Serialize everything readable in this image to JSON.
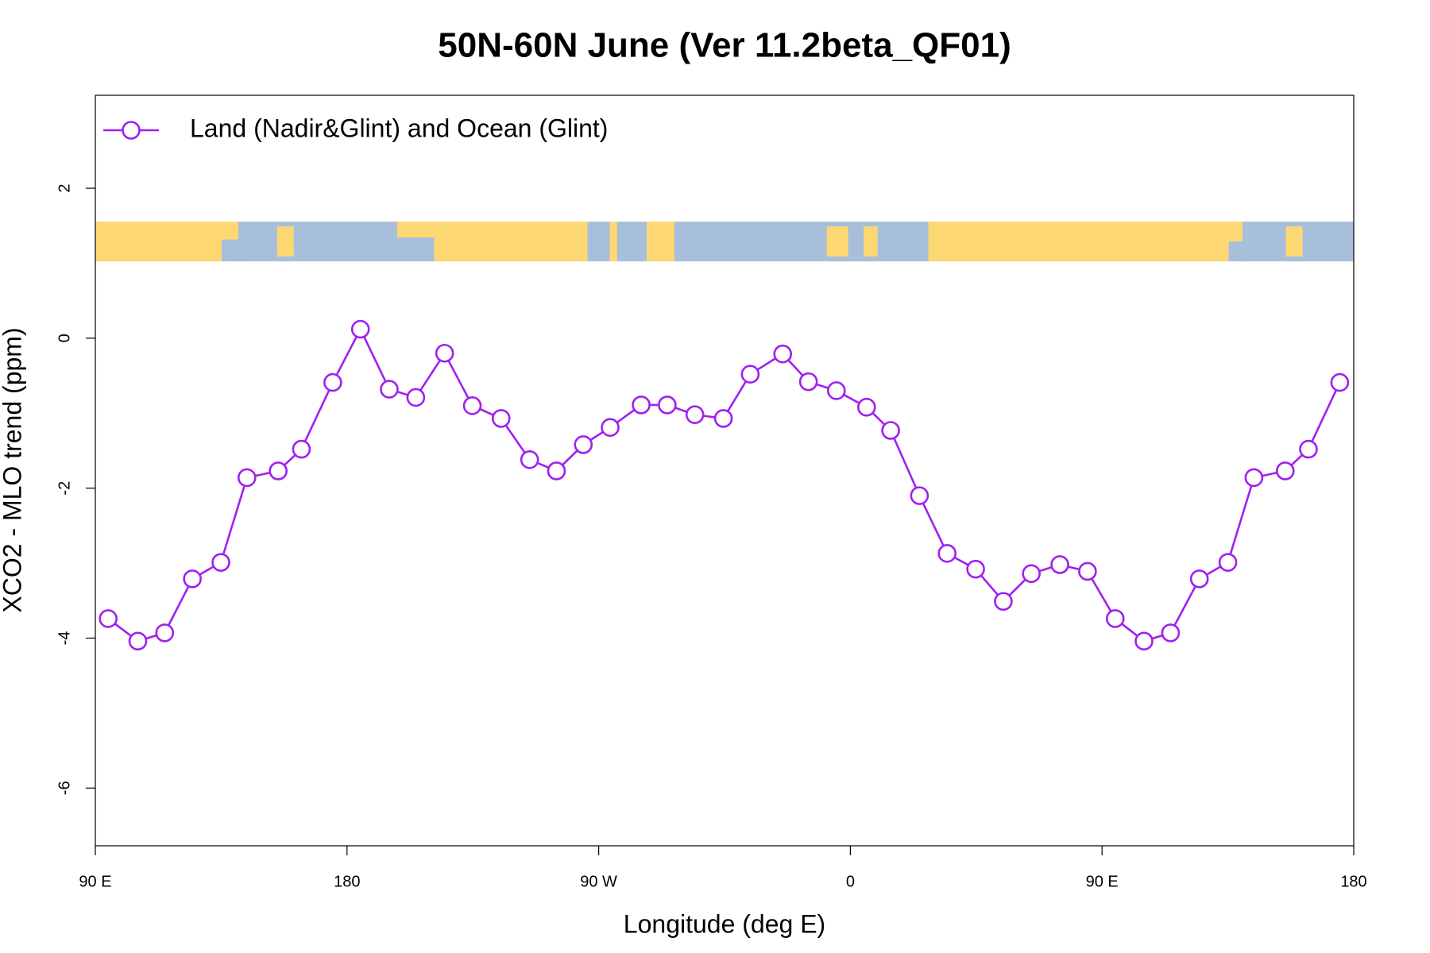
{
  "chart_data": {
    "type": "line",
    "title": "50N-60N June (Ver 11.2beta_QF01)",
    "x_label": "Longitude (deg E)",
    "y_label": "XCO2 - MLO trend (ppm)",
    "x": [
      94.6,
      105.2,
      114.8,
      124.7,
      134.9,
      144.2,
      155.4,
      163.7,
      174.9,
      184.8,
      195.1,
      204.6,
      214.9,
      224.8,
      235.1,
      245.3,
      254.9,
      264.5,
      274.1,
      285.2,
      294.5,
      304.4,
      314.6,
      324.2,
      335.8,
      345.0,
      355.0,
      365.8,
      374.4,
      384.7,
      394.6,
      404.8,
      414.7,
      424.7,
      434.9,
      444.8,
      454.7,
      465.0,
      474.5,
      484.8,
      495.0,
      504.3,
      515.5,
      523.8,
      535.0
    ],
    "series": [
      {
        "name": "Land (Nadir&Glint) and Ocean (Glint)",
        "color": "#a020f0",
        "values": [
          -3.74,
          -4.04,
          -3.93,
          -3.21,
          -2.99,
          -1.86,
          -1.77,
          -1.48,
          -0.59,
          0.12,
          -0.68,
          -0.79,
          -0.2,
          -0.9,
          -1.07,
          -1.62,
          -1.77,
          -1.42,
          -1.19,
          -0.89,
          -0.89,
          -1.02,
          -1.07,
          -0.48,
          -0.21,
          -0.58,
          -0.7,
          -0.92,
          -1.23,
          -2.1,
          -2.87,
          -3.08,
          -3.51,
          -3.14,
          -3.02,
          -3.11,
          -3.74,
          -4.04,
          -3.93,
          -3.21,
          -2.99,
          -1.86,
          -1.77,
          -1.48,
          -0.59
        ]
      }
    ],
    "xlim": [
      90,
      540
    ],
    "xticks": [
      {
        "value": 90,
        "label": "90 E"
      },
      180,
      {
        "value": 270,
        "label": "90 W"
      },
      {
        "value": 360,
        "label": "0"
      },
      {
        "value": 450,
        "label": "90 E"
      },
      {
        "value": 540,
        "label": "180"
      }
    ],
    "ylim": [
      -6.77,
      3.24
    ],
    "yticks": [
      -6,
      -4,
      -2,
      0,
      2
    ],
    "grid": false,
    "legend": "top-left"
  }
}
